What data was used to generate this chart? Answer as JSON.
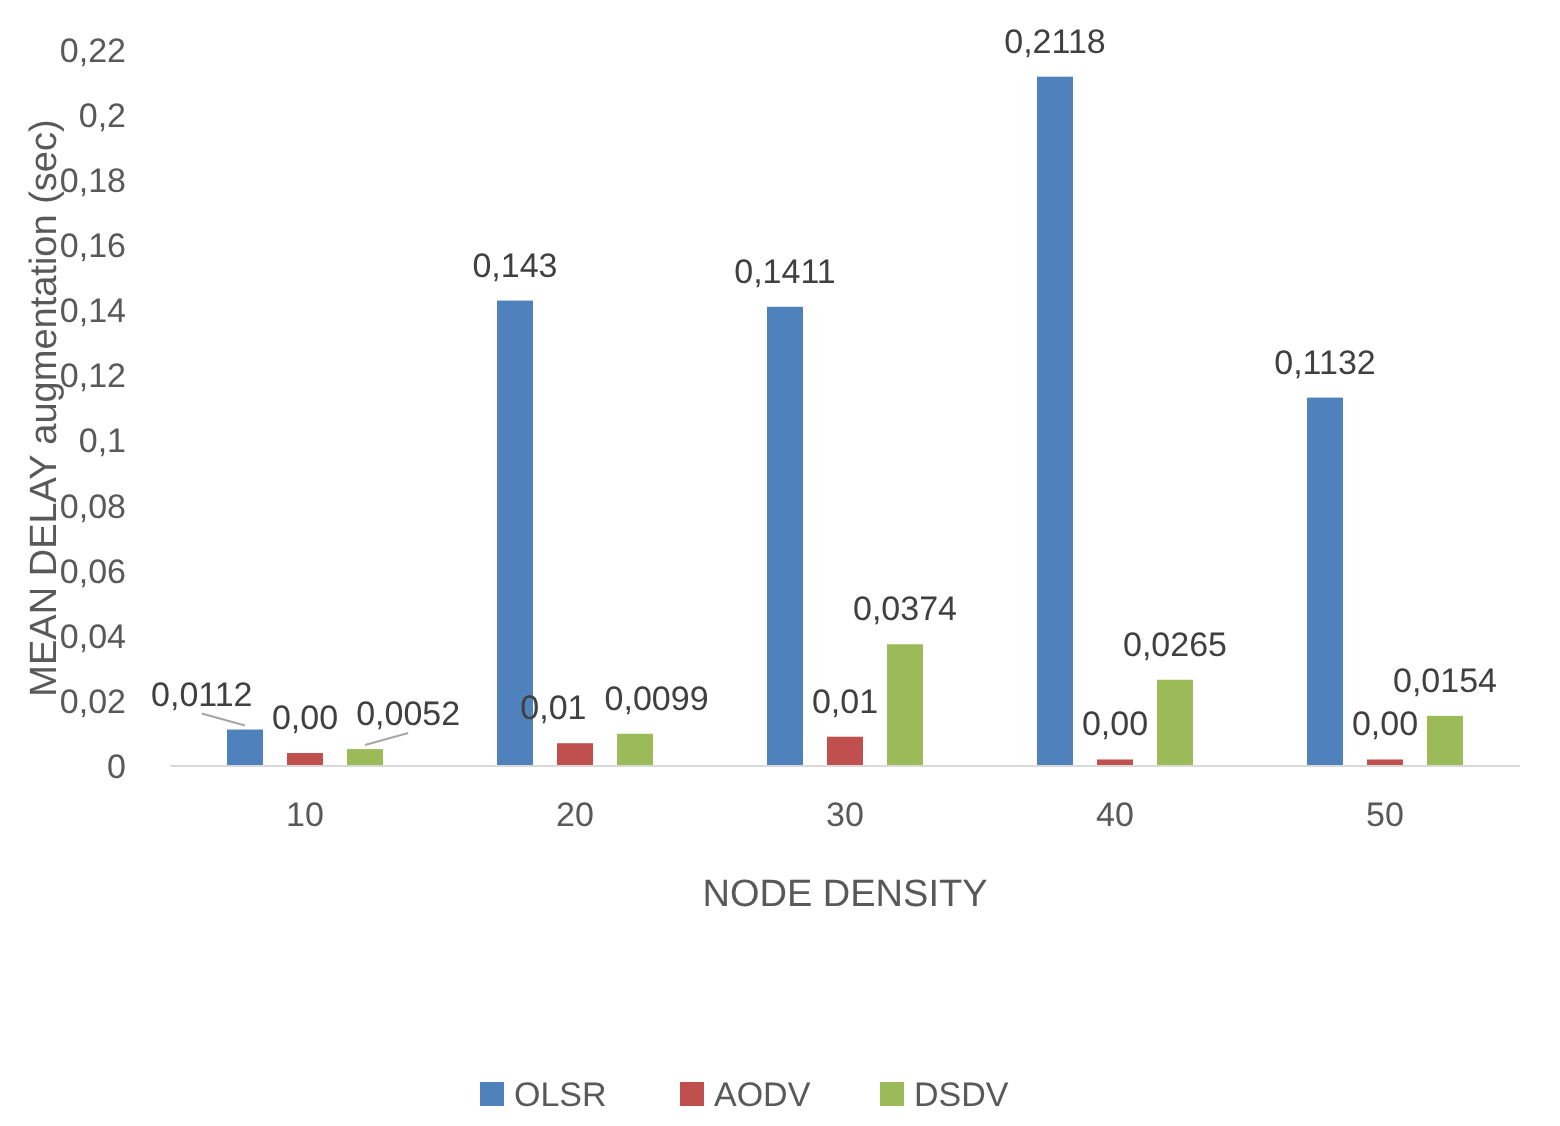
{
  "chart_data": {
    "type": "bar",
    "xlabel": "NODE DENSITY",
    "ylabel": "MEAN DELAY augmentation (sec)",
    "categories": [
      "10",
      "20",
      "30",
      "40",
      "50"
    ],
    "series": [
      {
        "name": "OLSR",
        "color": "#4f81bd",
        "values": [
          0.0112,
          0.143,
          0.1411,
          0.2118,
          0.1132
        ],
        "value_labels": [
          "0,0112",
          "0,143",
          "0,1411",
          "0,2118",
          "0,1132"
        ]
      },
      {
        "name": "AODV",
        "color": "#c0504d",
        "values": [
          0.004,
          0.007,
          0.009,
          0.002,
          0.002
        ],
        "value_labels": [
          "0,00",
          "0,01",
          "0,01",
          "0,00",
          "0,00"
        ]
      },
      {
        "name": "DSDV",
        "color": "#9bbb59",
        "values": [
          0.0052,
          0.0099,
          0.0374,
          0.0265,
          0.0154
        ],
        "value_labels": [
          "0,0052",
          "0,0099",
          "0,0374",
          "0,0265",
          "0,0154"
        ]
      }
    ],
    "ylim": [
      0,
      0.22
    ],
    "yticks": [
      0,
      {
        "value": 0.02,
        "label": "0,02"
      },
      {
        "value": 0.04,
        "label": "0,04"
      },
      {
        "value": 0.06,
        "label": "0,06"
      },
      {
        "value": 0.08,
        "label": "0,08"
      },
      {
        "value": 0.1,
        "label": "0,1"
      },
      {
        "value": 0.12,
        "label": "0,12"
      },
      {
        "value": 0.14,
        "label": "0,14"
      },
      {
        "value": 0.16,
        "label": "0,16"
      },
      {
        "value": 0.18,
        "label": "0,18"
      },
      {
        "value": 0.2,
        "label": "0,2"
      },
      {
        "value": 0.22,
        "label": "0,22"
      }
    ],
    "grid": false,
    "legend": "bottom"
  }
}
